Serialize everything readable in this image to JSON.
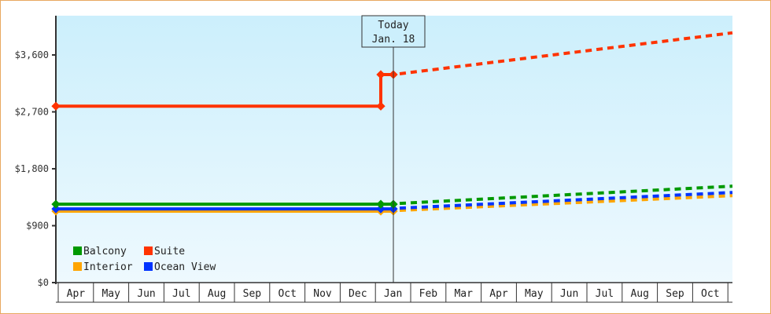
{
  "chart_data": {
    "type": "line",
    "title": "",
    "xlabel": "",
    "ylabel": "",
    "ylim": [
      0,
      4000
    ],
    "y_ticks": [
      "$0",
      "$900",
      "$1,800",
      "$2,700",
      "$3,600"
    ],
    "x_ticks": [
      "Apr",
      "May",
      "Jun",
      "Jul",
      "Aug",
      "Sep",
      "Oct",
      "Nov",
      "Dec",
      "Jan",
      "Feb",
      "Mar",
      "Apr",
      "May",
      "Jun",
      "Jul",
      "Aug",
      "Sep",
      "Oct"
    ],
    "grid": false,
    "legend_position": "bottom-left-inside",
    "annotation": {
      "line1": "Today",
      "line2": "Jan. 18"
    },
    "series": [
      {
        "name": "Balcony",
        "color": "#009900",
        "history": [
          [
            0,
            1240
          ],
          [
            9.15,
            1240
          ],
          [
            9.55,
            1240
          ]
        ],
        "forecast": [
          [
            9.55,
            1240
          ],
          [
            19,
            1525
          ]
        ]
      },
      {
        "name": "Suite",
        "color": "#ff3300",
        "history": [
          [
            0,
            2790
          ],
          [
            9.15,
            2790
          ],
          [
            9.2,
            3290
          ],
          [
            9.55,
            3290
          ]
        ],
        "forecast": [
          [
            9.55,
            3290
          ],
          [
            19,
            3950
          ]
        ]
      },
      {
        "name": "Interior",
        "color": "#ffa500",
        "history": [
          [
            0,
            1130
          ],
          [
            9.15,
            1130
          ],
          [
            9.55,
            1130
          ]
        ],
        "forecast": [
          [
            9.55,
            1130
          ],
          [
            19,
            1375
          ]
        ]
      },
      {
        "name": "Ocean View",
        "color": "#0033ff",
        "history": [
          [
            0,
            1165
          ],
          [
            9.15,
            1165
          ],
          [
            9.55,
            1165
          ]
        ],
        "forecast": [
          [
            9.55,
            1165
          ],
          [
            19,
            1425
          ]
        ]
      }
    ]
  }
}
